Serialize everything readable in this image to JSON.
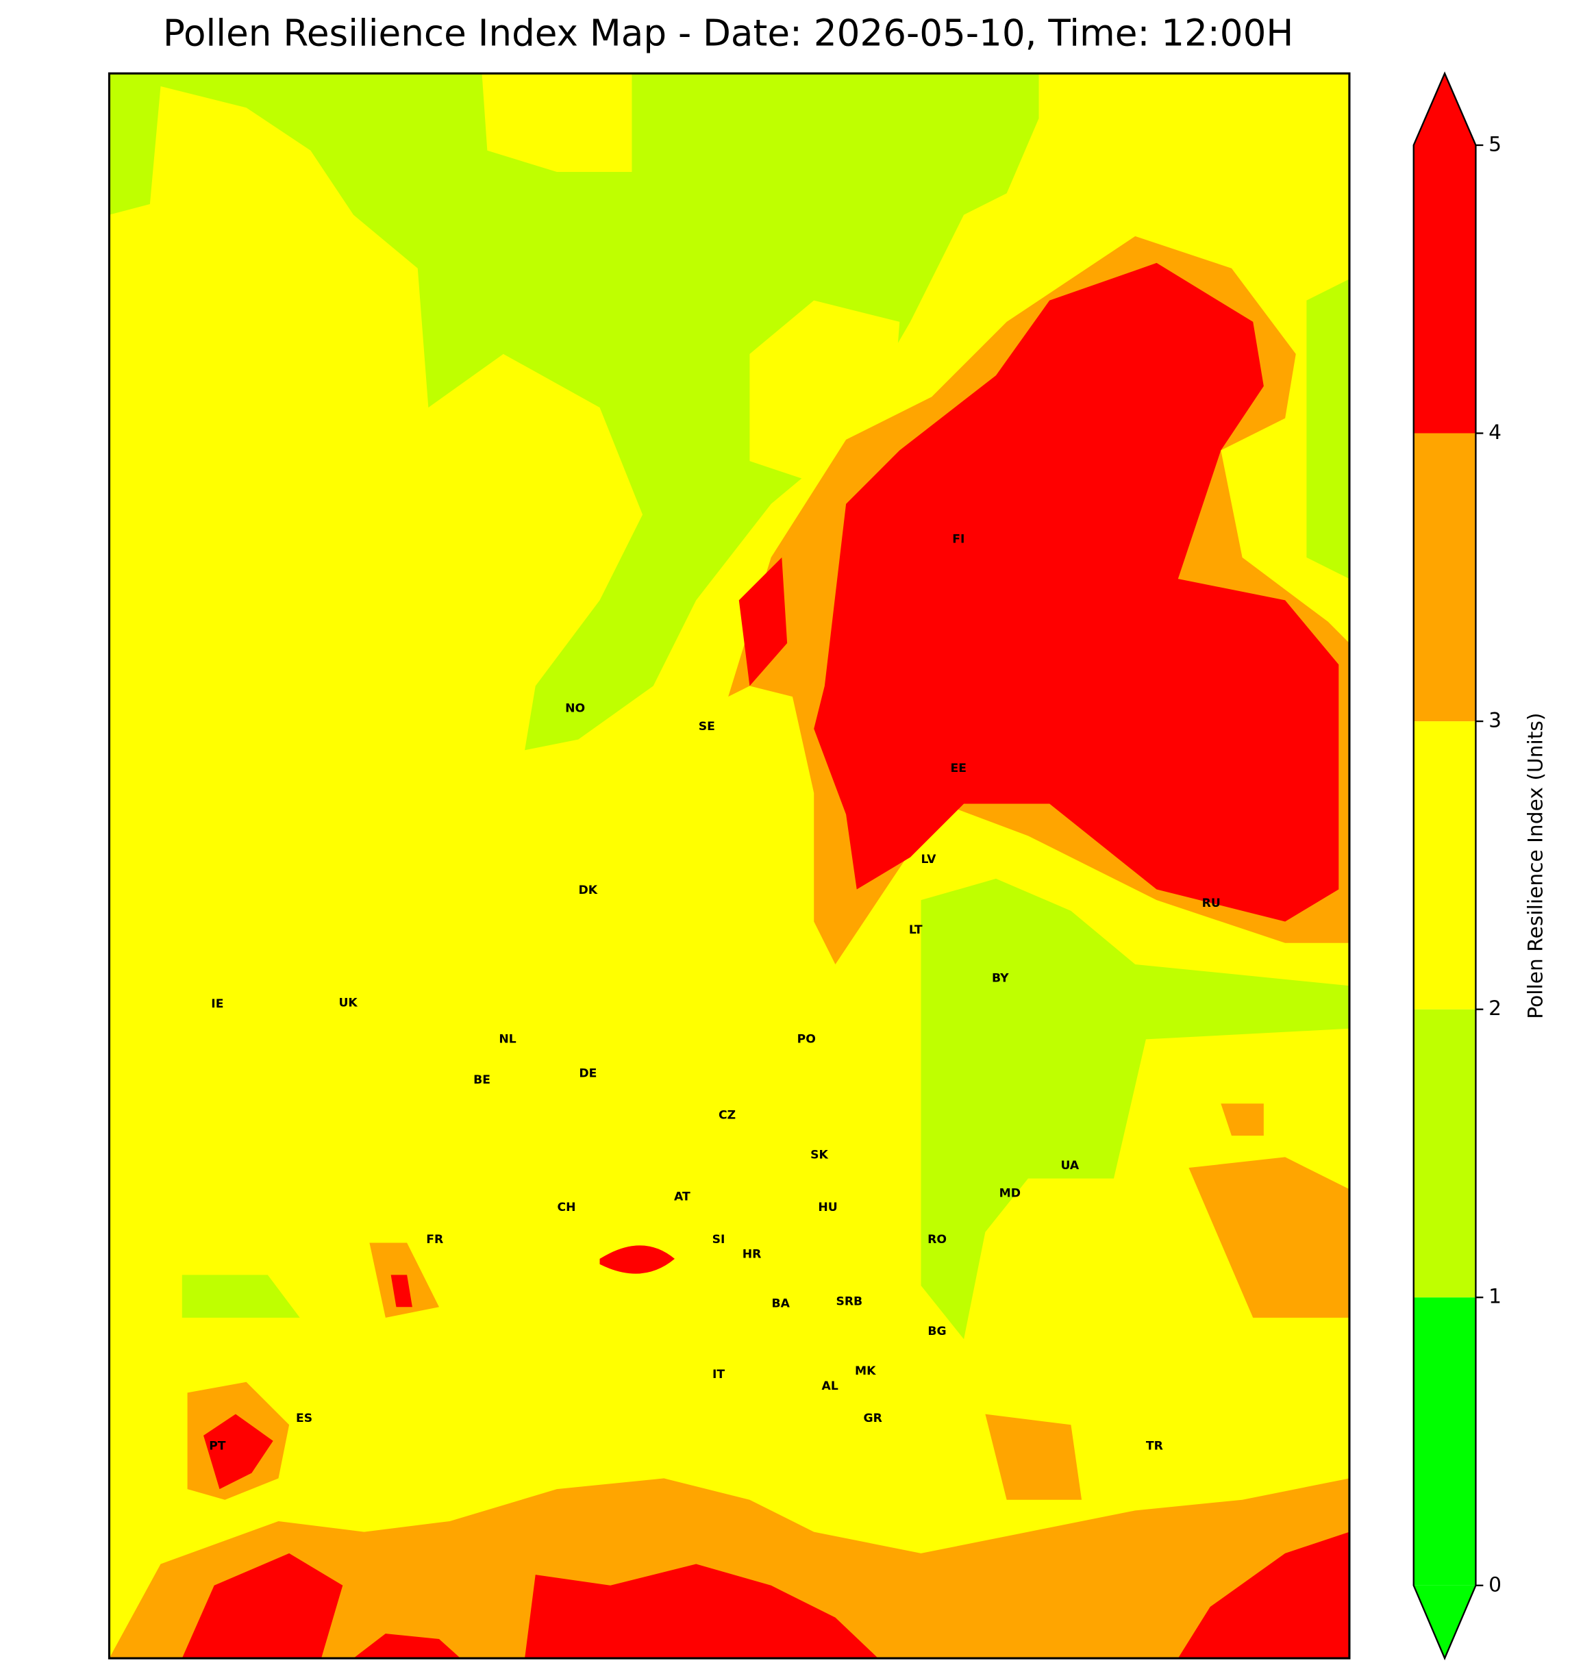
{
  "title": "Pollen Resilience Index Map - Date: 2026-05-10, Time: 12:00H",
  "colorbar": {
    "label": "Pollen Resilience Index (Units)",
    "ticks": [
      0,
      1,
      2,
      3,
      4,
      5
    ],
    "colors": [
      "#00ff00",
      "#bfff00",
      "#ffff00",
      "#ffa500",
      "#ff0000"
    ]
  },
  "country_labels": [
    "NO",
    "SE",
    "FI",
    "EE",
    "LV",
    "LT",
    "RU",
    "BY",
    "UA",
    "MD",
    "PO",
    "DE",
    "NL",
    "BE",
    "UK",
    "IE",
    "DK",
    "CZ",
    "SK",
    "AT",
    "HU",
    "CH",
    "FR",
    "SI",
    "HR",
    "RO",
    "BA",
    "SRB",
    "BG",
    "IT",
    "MK",
    "AL",
    "GR",
    "ES",
    "PT",
    "TR"
  ]
}
